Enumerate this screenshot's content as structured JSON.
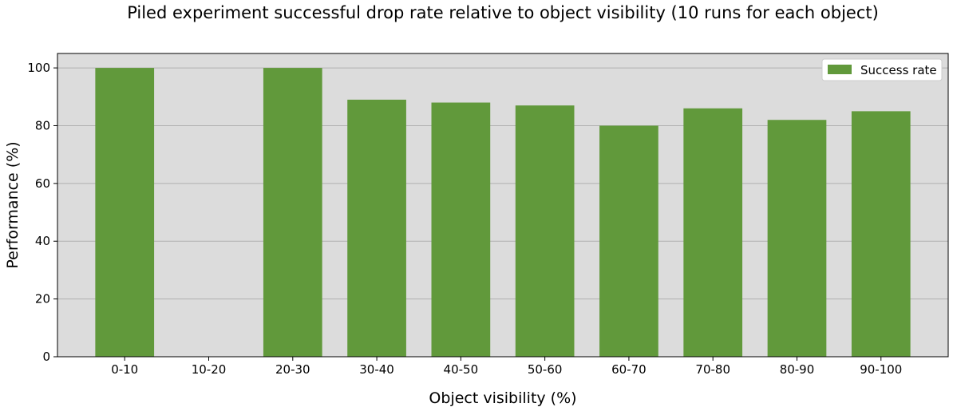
{
  "chart_data": {
    "type": "bar",
    "title": "Piled experiment successful drop rate relative to object visibility (10 runs for each object)",
    "xlabel": "Object visibility (%)",
    "ylabel": "Performance (%)",
    "categories": [
      "0-10",
      "10-20",
      "20-30",
      "30-40",
      "40-50",
      "50-60",
      "60-70",
      "70-80",
      "80-90",
      "90-100"
    ],
    "series": [
      {
        "name": "Success rate",
        "values": [
          100,
          0,
          100,
          89,
          88,
          87,
          80,
          86,
          82,
          85
        ],
        "color": "#61993b"
      }
    ],
    "ylim": [
      0,
      105
    ],
    "yticks": [
      0,
      20,
      40,
      60,
      80,
      100
    ],
    "grid": "horizontal",
    "legend_position": "top-right",
    "plot_background": "#dcdcdc"
  }
}
